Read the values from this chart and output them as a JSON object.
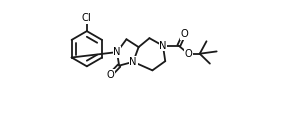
{
  "bg_color": "#ffffff",
  "line_color": "#1a1a1a",
  "line_width": 1.3,
  "font_size": 7.2,
  "fig_width": 2.94,
  "fig_height": 1.38,
  "dpi": 100,
  "xlim": [
    0,
    1.4
  ],
  "ylim": [
    0,
    1.0
  ]
}
